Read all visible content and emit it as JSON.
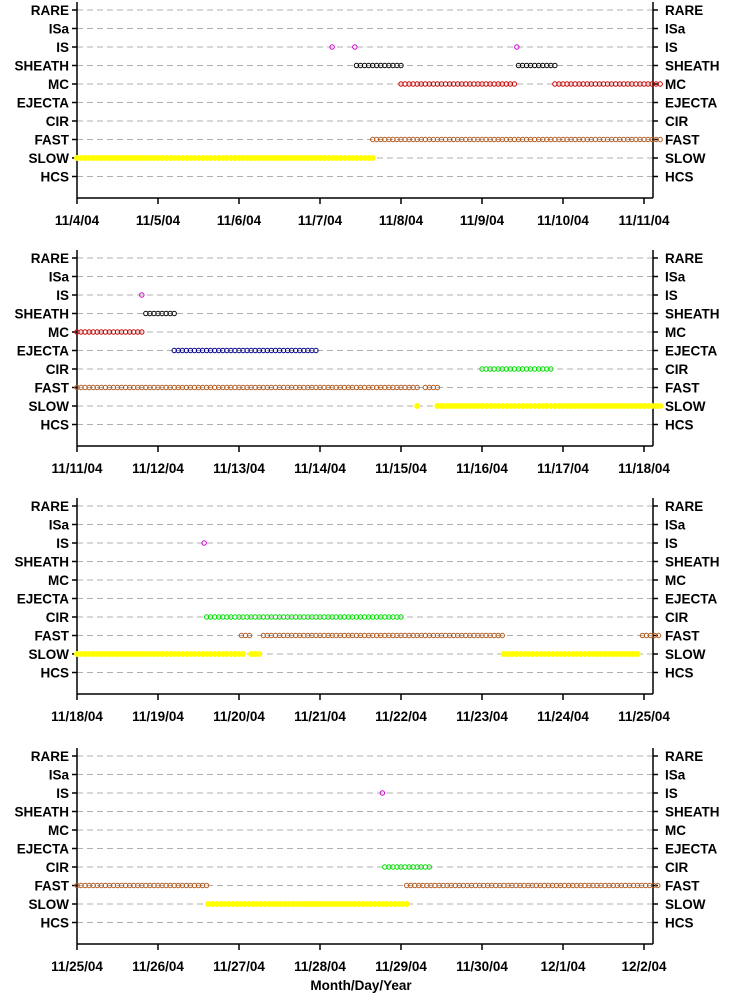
{
  "chart_data": {
    "type": "scatter",
    "xlabel": "Month/Day/Year",
    "categories": [
      "RARE",
      "ISa",
      "IS",
      "SHEATH",
      "MC",
      "EJECTA",
      "CIR",
      "FAST",
      "SLOW",
      "HCS"
    ],
    "series_colors": {
      "IS": "#cc00cc",
      "SHEATH": "#000000",
      "MC": "#cc0000",
      "EJECTA": "#00008b",
      "CIR": "#00dd00",
      "FAST": "#b35a1f",
      "SLOW": "#ffff00"
    },
    "grid": "dashed horizontal",
    "panels": [
      {
        "xticks": [
          "11/4/04",
          "11/5/04",
          "11/6/04",
          "11/7/04",
          "11/8/04",
          "11/9/04",
          "11/10/04",
          "11/11/04"
        ],
        "xlim_days": [
          0,
          7.2
        ],
        "events": [
          {
            "cat": "IS",
            "points": [
              3.15,
              3.43,
              5.43
            ]
          },
          {
            "cat": "SHEATH",
            "ranges": [
              [
                3.45,
                4.0
              ],
              [
                5.45,
                5.9
              ]
            ]
          },
          {
            "cat": "MC",
            "ranges": [
              [
                4.0,
                5.4
              ],
              [
                5.9,
                7.2
              ]
            ]
          },
          {
            "cat": "FAST",
            "ranges": [
              [
                3.65,
                7.2
              ]
            ]
          },
          {
            "cat": "SLOW",
            "ranges": [
              [
                0,
                3.65
              ]
            ]
          }
        ]
      },
      {
        "xticks": [
          "11/11/04",
          "11/12/04",
          "11/13/04",
          "11/14/04",
          "11/15/04",
          "11/16/04",
          "11/17/04",
          "11/18/04"
        ],
        "xlim_days": [
          0,
          7.2
        ],
        "events": [
          {
            "cat": "IS",
            "points": [
              0.8
            ]
          },
          {
            "cat": "SHEATH",
            "ranges": [
              [
                0.85,
                1.2
              ]
            ]
          },
          {
            "cat": "MC",
            "ranges": [
              [
                0,
                0.8
              ]
            ]
          },
          {
            "cat": "EJECTA",
            "ranges": [
              [
                1.2,
                2.95
              ]
            ]
          },
          {
            "cat": "CIR",
            "ranges": [
              [
                5.0,
                5.85
              ]
            ]
          },
          {
            "cat": "FAST",
            "ranges": [
              [
                0,
                4.2
              ],
              [
                4.3,
                4.45
              ]
            ]
          },
          {
            "cat": "SLOW",
            "points": [
              4.2
            ],
            "ranges": [
              [
                4.45,
                7.2
              ]
            ]
          }
        ]
      },
      {
        "xticks": [
          "11/18/04",
          "11/19/04",
          "11/20/04",
          "11/21/04",
          "11/22/04",
          "11/23/04",
          "11/24/04",
          "11/25/04"
        ],
        "xlim_days": [
          0,
          7.2
        ],
        "events": [
          {
            "cat": "IS",
            "points": [
              1.57
            ]
          },
          {
            "cat": "CIR",
            "ranges": [
              [
                1.6,
                4.02
              ]
            ]
          },
          {
            "cat": "FAST",
            "ranges": [
              [
                2.03,
                2.15
              ],
              [
                2.3,
                5.27
              ],
              [
                6.98,
                7.2
              ]
            ]
          },
          {
            "cat": "SLOW",
            "ranges": [
              [
                0,
                2.05
              ],
              [
                2.15,
                2.28
              ],
              [
                5.27,
                6.95
              ]
            ]
          }
        ]
      },
      {
        "xticks": [
          "11/25/04",
          "11/26/04",
          "11/27/04",
          "11/28/04",
          "11/29/04",
          "11/30/04",
          "12/1/04",
          "12/2/04"
        ],
        "xlim_days": [
          0,
          7.2
        ],
        "events": [
          {
            "cat": "IS",
            "points": [
              3.77
            ]
          },
          {
            "cat": "CIR",
            "ranges": [
              [
                3.8,
                4.35
              ]
            ]
          },
          {
            "cat": "FAST",
            "ranges": [
              [
                0,
                1.62
              ],
              [
                4.07,
                7.2
              ]
            ]
          },
          {
            "cat": "SLOW",
            "ranges": [
              [
                1.62,
                4.07
              ]
            ]
          }
        ]
      }
    ]
  }
}
